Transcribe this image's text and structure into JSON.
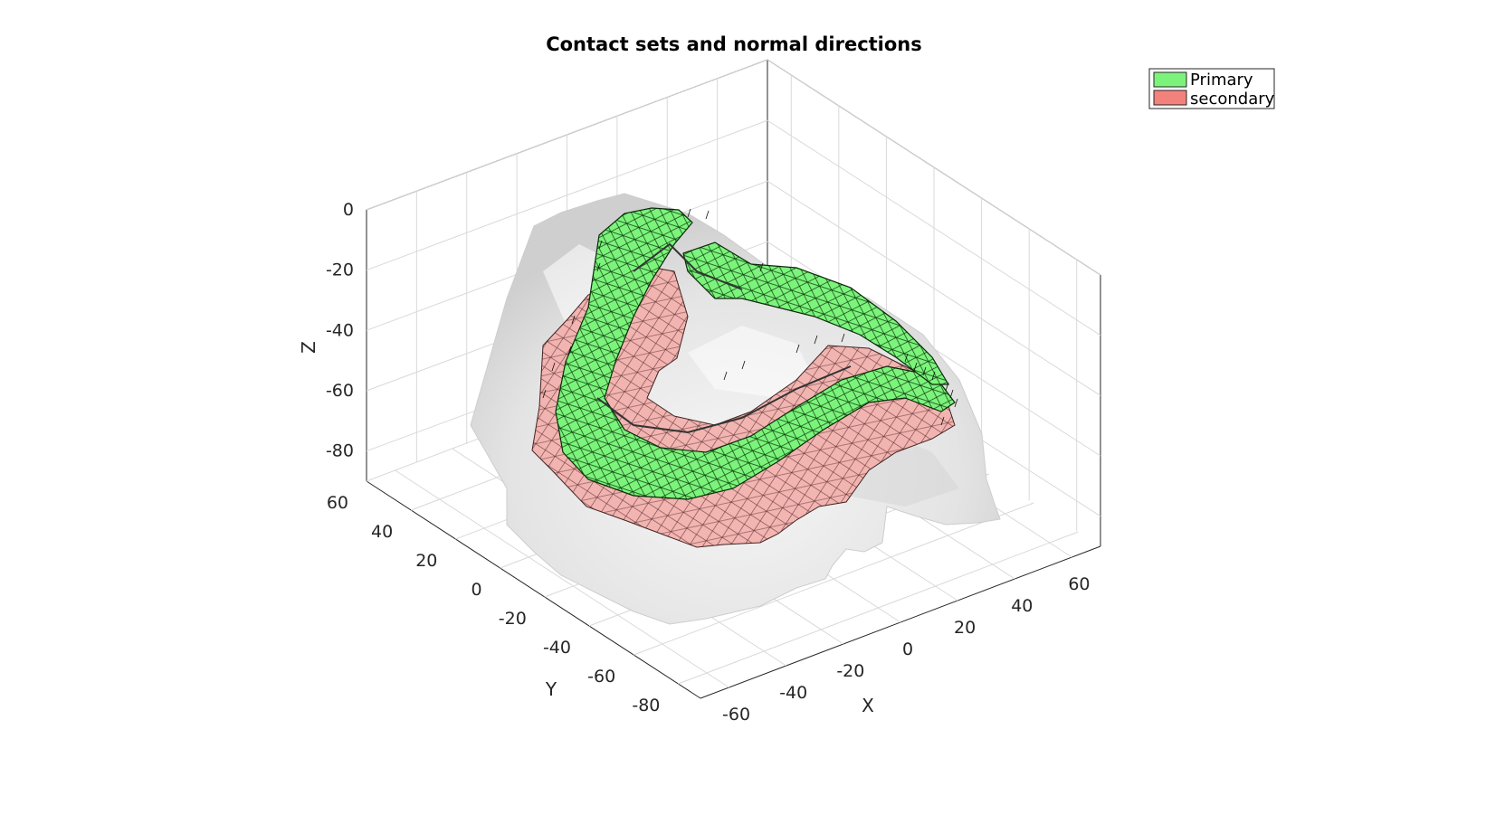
{
  "chart_data": {
    "type": "surface3d",
    "title": "Contact sets and normal directions",
    "xlabel": "X",
    "ylabel": "Y",
    "zlabel": "Z",
    "xticks": [
      -60,
      -40,
      -20,
      0,
      20,
      40,
      60
    ],
    "yticks": [
      -80,
      -60,
      -40,
      -20,
      0,
      20,
      40,
      60
    ],
    "zticks": [
      0,
      -20,
      -40,
      -60,
      -80
    ],
    "grid": true,
    "legend_position": "top-right",
    "series": [
      {
        "name": "Primary",
        "color": "#7cf47c",
        "kind": "surface mesh with normal vectors"
      },
      {
        "name": "secondary",
        "color": "#f4827c",
        "kind": "surface mesh"
      }
    ],
    "background_surface_color": "#e6e6e6"
  }
}
